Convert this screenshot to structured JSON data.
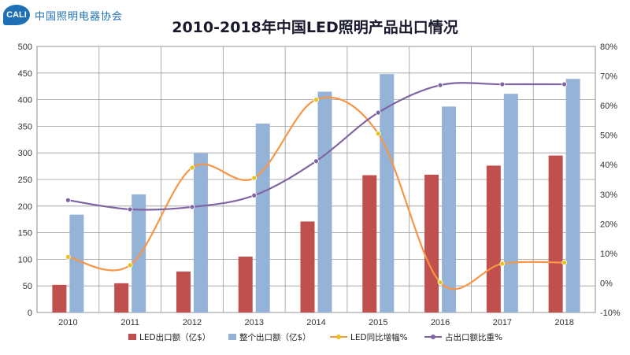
{
  "header": {
    "logo_badge": "CALI",
    "logo_text": "中国照明电器协会"
  },
  "chart_data": {
    "type": "bar",
    "title": "2010-2018年中国LED照明产品出口情况",
    "categories": [
      "2010",
      "2011",
      "2012",
      "2013",
      "2014",
      "2015",
      "2016",
      "2017",
      "2018"
    ],
    "series": [
      {
        "name": "LED出口额（亿$）",
        "kind": "bar",
        "axis": "left",
        "color": "#c0504d",
        "values": [
          52,
          55,
          77,
          105,
          171,
          258,
          259,
          276,
          295
        ]
      },
      {
        "name": "整个出口额（亿$）",
        "kind": "bar",
        "axis": "left",
        "color": "#95b3d7",
        "values": [
          184,
          222,
          299,
          355,
          415,
          448,
          387,
          411,
          439
        ]
      },
      {
        "name": "LED同比增幅%",
        "kind": "line",
        "axis": "right",
        "color": "#f79646",
        "marker_color": "#e8c31c",
        "values": [
          8.8,
          6.0,
          39.0,
          35.5,
          62.0,
          50.5,
          0.2,
          6.5,
          6.9
        ]
      },
      {
        "name": "占出口额比重%",
        "kind": "line",
        "axis": "right",
        "color": "#8064a2",
        "values": [
          28.0,
          24.9,
          25.7,
          29.6,
          41.2,
          57.6,
          66.9,
          67.2,
          67.2
        ]
      }
    ],
    "y_left": {
      "min": 0,
      "max": 500,
      "step": 50,
      "ticks": [
        "0",
        "50",
        "100",
        "150",
        "200",
        "250",
        "300",
        "350",
        "400",
        "450",
        "500"
      ]
    },
    "y_right": {
      "min": -10,
      "max": 80,
      "step": 10,
      "ticks": [
        "-10%",
        "0%",
        "10%",
        "20%",
        "30%",
        "40%",
        "50%",
        "60%",
        "70%",
        "80%"
      ]
    },
    "grid": true,
    "legend_position": "bottom"
  }
}
